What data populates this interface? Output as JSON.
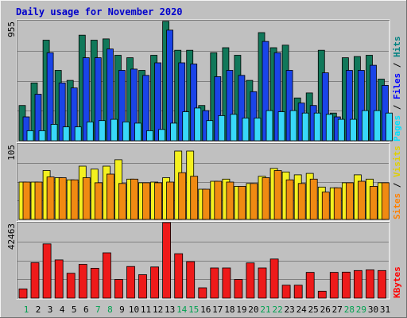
{
  "chart_data": {
    "type": "bar",
    "title": "Daily usage for November 2020",
    "categories": [
      "1",
      "2",
      "3",
      "4",
      "5",
      "6",
      "7",
      "8",
      "9",
      "10",
      "11",
      "12",
      "13",
      "14",
      "15",
      "16",
      "17",
      "18",
      "19",
      "20",
      "21",
      "22",
      "23",
      "24",
      "25",
      "26",
      "27",
      "28",
      "29",
      "30",
      "31"
    ],
    "weekend_days": [
      "1",
      "7",
      "8",
      "14",
      "15",
      "21",
      "22",
      "28",
      "29"
    ],
    "panels": [
      {
        "id": "hits",
        "ymax": 955,
        "ymax_label": "955",
        "legend": [
          {
            "label": "Hits",
            "color": "#008080"
          },
          {
            "label": "Files",
            "color": "#0000ff"
          },
          {
            "label": "Pages",
            "color": "#00e0ff"
          }
        ],
        "series": [
          {
            "name": "Hits",
            "color": "#11785a",
            "values": [
              280,
              460,
              800,
              560,
              480,
              840,
              800,
              810,
              680,
              660,
              560,
              680,
              950,
              720,
              720,
              280,
              700,
              740,
              680,
              480,
              860,
              740,
              760,
              340,
              380,
              720,
              220,
              660,
              670,
              680,
              490
            ]
          },
          {
            "name": "Files",
            "color": "#1a44e8",
            "values": [
              190,
              370,
              700,
              460,
              420,
              660,
              660,
              730,
              560,
              570,
              520,
              620,
              880,
              620,
              610,
              240,
              510,
              560,
              520,
              390,
              790,
              700,
              560,
              300,
              280,
              540,
              190,
              560,
              560,
              600,
              440
            ]
          },
          {
            "name": "Pages",
            "color": "#38d8f8",
            "values": [
              80,
              80,
              130,
              110,
              110,
              150,
              160,
              170,
              150,
              140,
              80,
              90,
              140,
              230,
              260,
              160,
              200,
              210,
              180,
              180,
              240,
              230,
              240,
              220,
              220,
              210,
              170,
              170,
              240,
              240,
              220
            ]
          }
        ]
      },
      {
        "id": "visits",
        "ymax": 105,
        "ymax_label": "105",
        "legend": [
          {
            "label": "Visits",
            "color": "#e0d000"
          },
          {
            "label": "Sites",
            "color": "#ff8000"
          }
        ],
        "series": [
          {
            "name": "Visits",
            "color": "#f4f020",
            "values": [
              52,
              52,
              68,
              58,
              55,
              74,
              70,
              74,
              83,
              56,
              51,
              52,
              58,
              95,
              95,
              42,
              53,
              56,
              46,
              50,
              60,
              71,
              66,
              62,
              64,
              45,
              44,
              51,
              62,
              56,
              51
            ]
          },
          {
            "name": "Sites",
            "color": "#f08a12",
            "values": [
              52,
              52,
              59,
              58,
              55,
              58,
              51,
              63,
              50,
              56,
              51,
              51,
              52,
              65,
              60,
              42,
              53,
              52,
              46,
              50,
              58,
              68,
              55,
              50,
              56,
              38,
              44,
              51,
              53,
              46,
              51
            ]
          }
        ]
      },
      {
        "id": "kbytes",
        "ymax": 42463,
        "ymax_label": "42463",
        "legend": [
          {
            "label": "KBytes",
            "color": "#ff0000"
          }
        ],
        "series": [
          {
            "name": "KBytes",
            "color": "#ee1a1a",
            "values": [
              5200,
              20000,
              30500,
              21500,
              14000,
              19000,
              16800,
              25500,
              10500,
              17800,
              13200,
              17500,
              42463,
              25000,
              20500,
              5800,
              17000,
              17000,
              10500,
              19800,
              17000,
              22000,
              7300,
              7300,
              14500,
              3900,
              14500,
              14600,
              15500,
              15900,
              15500
            ]
          }
        ]
      }
    ]
  }
}
